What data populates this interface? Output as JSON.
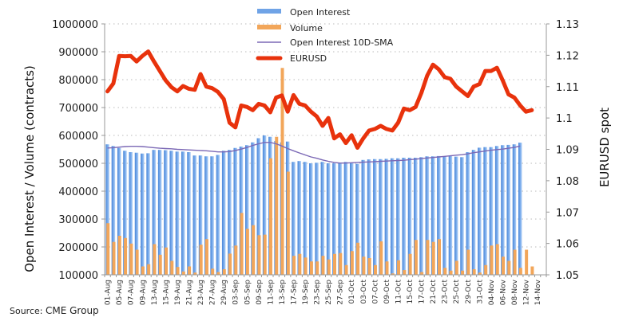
{
  "chart_data": {
    "type": "bar",
    "title": "",
    "source_label": "Source:",
    "source_value": "CME Group",
    "ylabel": "Open Interest / Volume (contracts)",
    "y2label": "EURUSD spot",
    "ylim": [
      100000,
      1000000
    ],
    "y2lim": [
      1.05,
      1.13
    ],
    "yticks": [
      "100000",
      "200000",
      "300000",
      "400000",
      "500000",
      "600000",
      "700000",
      "800000",
      "900000",
      "1000000"
    ],
    "y2ticks": [
      "1.05",
      "1.06",
      "1.07",
      "1.08",
      "1.09",
      "1.1",
      "1.11",
      "1.12",
      "1.13"
    ],
    "grid": true,
    "legend_position": "top-center",
    "legend": [
      {
        "name": "Open Interest",
        "color": "#6fa3e6"
      },
      {
        "name": "Volume",
        "color": "#f2a65a"
      },
      {
        "name": "Open Interest 10D-SMA",
        "color": "#7b68b5"
      },
      {
        "name": "EURUSD",
        "color": "#e8320c"
      }
    ],
    "x_labels": [
      "01-Aug",
      "05-Aug",
      "07-Aug",
      "09-Aug",
      "13-Aug",
      "15-Aug",
      "19-Aug",
      "21-Aug",
      "23-Aug",
      "27-Aug",
      "29-Aug",
      "03-Sep",
      "05-Sep",
      "09-Sep",
      "11-Sep",
      "13-Sep",
      "17-Sep",
      "19-Sep",
      "23-Sep",
      "25-Sep",
      "27-Sep",
      "01-Oct",
      "03-Oct",
      "07-Oct",
      "09-Oct",
      "11-Oct",
      "15-Oct",
      "17-Oct",
      "21-Oct",
      "23-Oct",
      "25-Oct",
      "29-Oct",
      "31-Oct",
      "04-Nov",
      "06-Nov",
      "08-Nov",
      "12-Nov",
      "14-Nov"
    ],
    "n_slots": 76,
    "series": [
      {
        "name": "Open Interest",
        "axis": "left",
        "values": [
          568000,
          562000,
          555000,
          545000,
          540000,
          538000,
          535000,
          536000,
          548000,
          548000,
          547000,
          545000,
          542000,
          542000,
          540000,
          528000,
          528000,
          525000,
          525000,
          530000,
          545000,
          548000,
          555000,
          560000,
          565000,
          575000,
          590000,
          600000,
          595000,
          580000,
          575000,
          578000,
          505000,
          508000,
          505000,
          500000,
          502000,
          505000,
          500000,
          500000,
          502000,
          505000,
          502000,
          498000,
          512000,
          514000,
          515000,
          515000,
          516000,
          518000,
          518000,
          520000,
          520000,
          520000,
          522000,
          525000,
          525000,
          526000,
          525000,
          527000,
          524000,
          522000,
          540000,
          548000,
          556000,
          558000,
          558000,
          562000,
          565000,
          566000,
          568000,
          574000,
          null,
          null,
          null,
          null
        ]
      },
      {
        "name": "Volume",
        "axis": "left",
        "values": [
          285000,
          218000,
          240000,
          232000,
          212000,
          190000,
          130000,
          138000,
          210000,
          172000,
          198000,
          150000,
          128000,
          112000,
          130000,
          108000,
          208000,
          228000,
          122000,
          110000,
          120000,
          176000,
          205000,
          322000,
          265000,
          278000,
          242000,
          244000,
          518000,
          595000,
          842000,
          470000,
          168000,
          175000,
          162000,
          148000,
          148000,
          168000,
          155000,
          175000,
          178000,
          135000,
          185000,
          215000,
          165000,
          160000,
          135000,
          220000,
          148000,
          105000,
          152000,
          117000,
          175000,
          225000,
          110000,
          225000,
          218000,
          228000,
          125000,
          115000,
          150000,
          115000,
          190000,
          120000,
          108000,
          135000,
          205000,
          210000,
          165000,
          150000,
          190000,
          125000,
          190000,
          130000,
          null,
          null
        ]
      },
      {
        "name": "Open Interest 10D-SMA",
        "axis": "left",
        "values": [
          555000,
          556000,
          558000,
          560000,
          561000,
          561000,
          560000,
          558000,
          556000,
          554000,
          553000,
          552000,
          550000,
          549000,
          548000,
          547000,
          546000,
          545000,
          543000,
          541000,
          541000,
          542000,
          546000,
          551000,
          557000,
          564000,
          570000,
          575000,
          575000,
          570000,
          562000,
          553000,
          545000,
          537000,
          530000,
          523000,
          518000,
          512000,
          507000,
          503000,
          501000,
          501000,
          502000,
          503000,
          504000,
          505000,
          506000,
          507000,
          508000,
          509000,
          510000,
          511000,
          513000,
          515000,
          517000,
          519000,
          521000,
          523000,
          525000,
          527000,
          529000,
          531000,
          534000,
          538000,
          541000,
          544000,
          547000,
          549000,
          551000,
          554000,
          557000,
          562000,
          null,
          null,
          null,
          null
        ]
      },
      {
        "name": "EURUSD",
        "axis": "right",
        "values": [
          1.1085,
          1.111,
          1.1198,
          1.1197,
          1.1198,
          1.118,
          1.1198,
          1.1212,
          1.118,
          1.115,
          1.112,
          1.1098,
          1.1085,
          1.1102,
          1.1093,
          1.109,
          1.114,
          1.11,
          1.1095,
          1.1083,
          1.106,
          1.0985,
          1.097,
          1.104,
          1.1035,
          1.1025,
          1.1045,
          1.104,
          1.1018,
          1.1065,
          1.1072,
          1.102,
          1.1073,
          1.1045,
          1.104,
          1.102,
          1.1005,
          1.0975,
          1.1,
          1.0935,
          1.0948,
          1.092,
          1.0945,
          1.0905,
          1.0935,
          1.096,
          1.0965,
          1.0975,
          1.0965,
          1.096,
          1.0985,
          1.103,
          1.1025,
          1.1035,
          1.108,
          1.1135,
          1.117,
          1.1155,
          1.113,
          1.1125,
          1.11,
          1.1085,
          1.107,
          1.11,
          1.1108,
          1.115,
          1.115,
          1.116,
          1.112,
          1.1075,
          1.1065,
          1.104,
          1.102,
          1.1025,
          null,
          null
        ]
      }
    ]
  }
}
